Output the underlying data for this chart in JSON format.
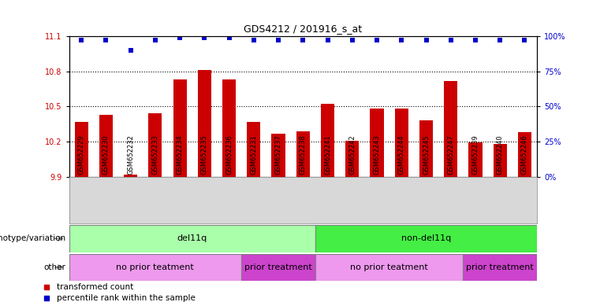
{
  "title": "GDS4212 / 201916_s_at",
  "samples": [
    "GSM652229",
    "GSM652230",
    "GSM652232",
    "GSM652233",
    "GSM652234",
    "GSM652235",
    "GSM652236",
    "GSM652231",
    "GSM652237",
    "GSM652238",
    "GSM652241",
    "GSM652242",
    "GSM652243",
    "GSM652244",
    "GSM652245",
    "GSM652247",
    "GSM652239",
    "GSM652240",
    "GSM652246"
  ],
  "bar_values": [
    10.37,
    10.43,
    9.92,
    10.44,
    10.73,
    10.81,
    10.73,
    10.37,
    10.27,
    10.29,
    10.52,
    10.21,
    10.48,
    10.48,
    10.38,
    10.72,
    10.19,
    10.18,
    10.28
  ],
  "dot_values": [
    97,
    97,
    90,
    97,
    99,
    99,
    99,
    97,
    97,
    97,
    97,
    97,
    97,
    97,
    97,
    97,
    97,
    97,
    97
  ],
  "ylim_left": [
    9.9,
    11.1
  ],
  "ylim_right": [
    0,
    100
  ],
  "yticks_left": [
    9.9,
    10.2,
    10.5,
    10.8,
    11.1
  ],
  "yticks_right": [
    0,
    25,
    50,
    75,
    100
  ],
  "bar_color": "#cc0000",
  "dot_color": "#0000cc",
  "hline_values": [
    10.2,
    10.5,
    10.8
  ],
  "genotype_groups": [
    {
      "label": "del11q",
      "start": 0,
      "end": 10,
      "color": "#aaffaa"
    },
    {
      "label": "non-del11q",
      "start": 10,
      "end": 19,
      "color": "#44ee44"
    }
  ],
  "other_groups": [
    {
      "label": "no prior teatment",
      "start": 0,
      "end": 7,
      "color": "#ee99ee"
    },
    {
      "label": "prior treatment",
      "start": 7,
      "end": 10,
      "color": "#cc44cc"
    },
    {
      "label": "no prior teatment",
      "start": 10,
      "end": 16,
      "color": "#ee99ee"
    },
    {
      "label": "prior treatment",
      "start": 16,
      "end": 19,
      "color": "#cc44cc"
    }
  ],
  "legend_items": [
    {
      "label": "transformed count",
      "color": "#cc0000"
    },
    {
      "label": "percentile rank within the sample",
      "color": "#0000cc"
    }
  ]
}
